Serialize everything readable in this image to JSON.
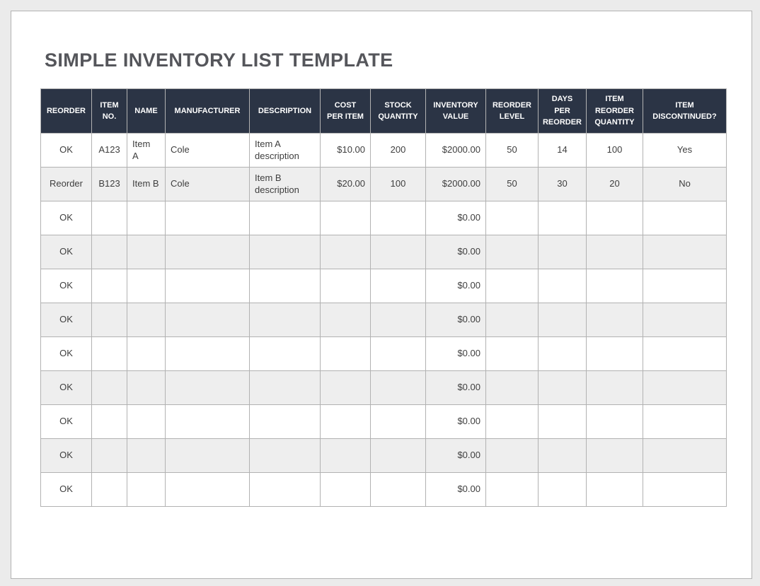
{
  "title": "SIMPLE INVENTORY LIST TEMPLATE",
  "colors": {
    "header_bg": "#2b3445",
    "header_text": "#ffffff",
    "alt_row_bg": "#eeeeee",
    "grid_line": "#b2b2b2",
    "title_text": "#55565b"
  },
  "table": {
    "columns": [
      {
        "id": "reorder",
        "label": "REORDER",
        "align": "center"
      },
      {
        "id": "item-no",
        "label": "ITEM\nNO.",
        "align": "center"
      },
      {
        "id": "name",
        "label": "NAME",
        "align": "left"
      },
      {
        "id": "manufacturer",
        "label": "MANUFACTURER",
        "align": "left"
      },
      {
        "id": "description",
        "label": "DESCRIPTION",
        "align": "left"
      },
      {
        "id": "cost-per-item",
        "label": "COST\nPER ITEM",
        "align": "right"
      },
      {
        "id": "stock-quantity",
        "label": "STOCK\nQUANTITY",
        "align": "center"
      },
      {
        "id": "inventory-value",
        "label": "INVENTORY\nVALUE",
        "align": "right"
      },
      {
        "id": "reorder-level",
        "label": "REORDER\nLEVEL",
        "align": "center"
      },
      {
        "id": "days-per-reorder",
        "label": "DAYS\nPER\nREORDER",
        "align": "center"
      },
      {
        "id": "item-reorder-quantity",
        "label": "ITEM\nREORDER\nQUANTITY",
        "align": "center"
      },
      {
        "id": "item-discontinued",
        "label": "ITEM\nDISCONTINUED?",
        "align": "center"
      }
    ],
    "rows": [
      [
        "OK",
        "A123",
        "Item\nA",
        "Cole",
        "Item A\ndescription",
        "$10.00",
        "200",
        "$2000.00",
        "50",
        "14",
        "100",
        "Yes"
      ],
      [
        "Reorder",
        "B123",
        "Item B",
        "Cole",
        "Item B\ndescription",
        "$20.00",
        "100",
        "$2000.00",
        "50",
        "30",
        "20",
        "No"
      ],
      [
        "OK",
        "",
        "",
        "",
        "",
        "",
        "",
        "$0.00",
        "",
        "",
        "",
        ""
      ],
      [
        "OK",
        "",
        "",
        "",
        "",
        "",
        "",
        "$0.00",
        "",
        "",
        "",
        ""
      ],
      [
        "OK",
        "",
        "",
        "",
        "",
        "",
        "",
        "$0.00",
        "",
        "",
        "",
        ""
      ],
      [
        "OK",
        "",
        "",
        "",
        "",
        "",
        "",
        "$0.00",
        "",
        "",
        "",
        ""
      ],
      [
        "OK",
        "",
        "",
        "",
        "",
        "",
        "",
        "$0.00",
        "",
        "",
        "",
        ""
      ],
      [
        "OK",
        "",
        "",
        "",
        "",
        "",
        "",
        "$0.00",
        "",
        "",
        "",
        ""
      ],
      [
        "OK",
        "",
        "",
        "",
        "",
        "",
        "",
        "$0.00",
        "",
        "",
        "",
        ""
      ],
      [
        "OK",
        "",
        "",
        "",
        "",
        "",
        "",
        "$0.00",
        "",
        "",
        "",
        ""
      ],
      [
        "OK",
        "",
        "",
        "",
        "",
        "",
        "",
        "$0.00",
        "",
        "",
        "",
        ""
      ]
    ]
  }
}
